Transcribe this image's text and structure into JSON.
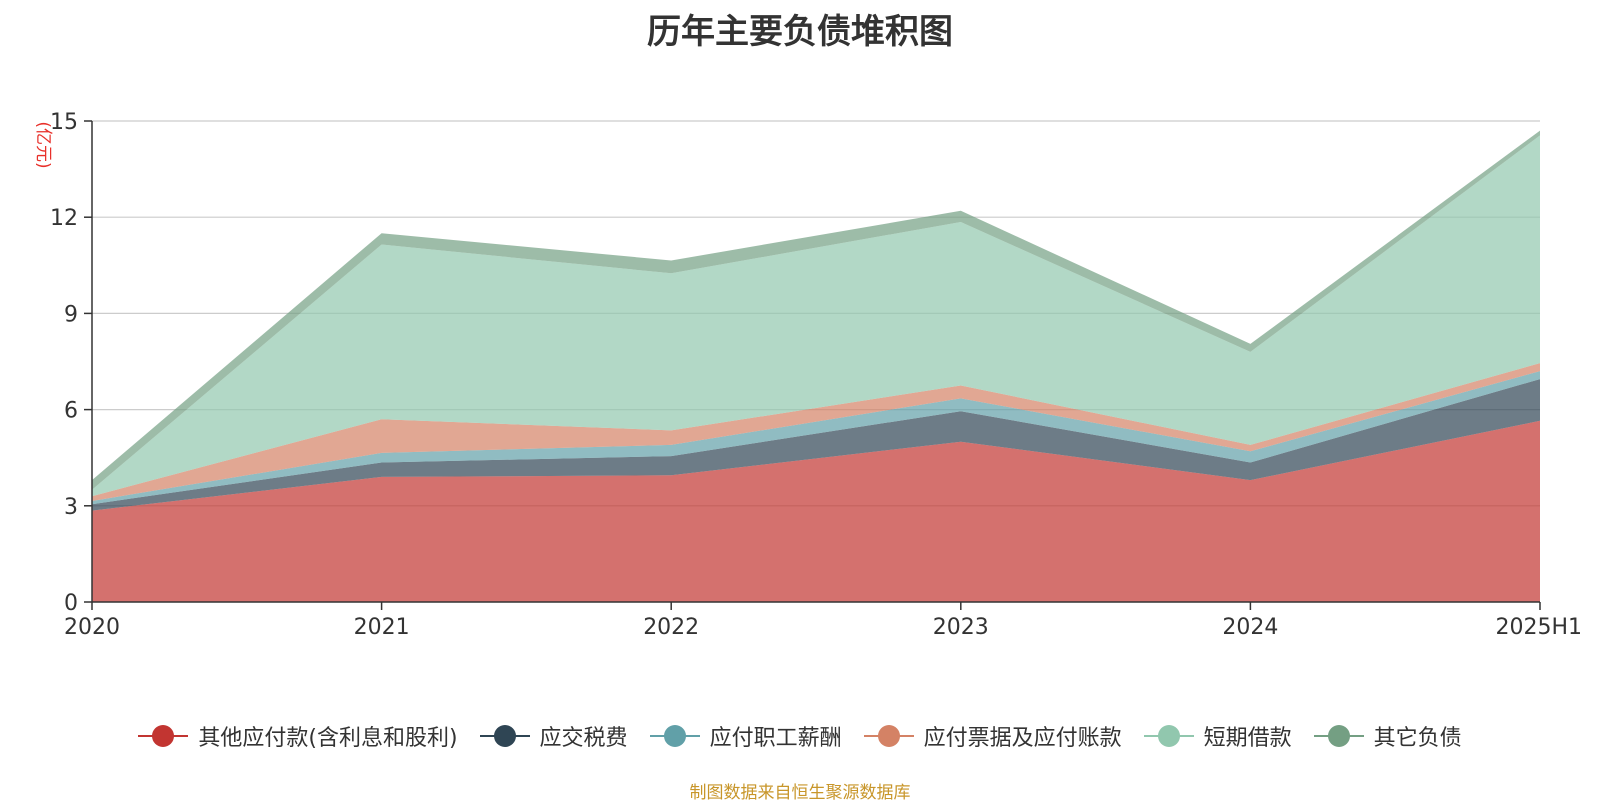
{
  "chart_data": {
    "type": "area",
    "stacked": true,
    "title": "历年主要负债堆积图",
    "ylabel": "(亿元)",
    "xlabel": "",
    "categories": [
      "2020",
      "2021",
      "2022",
      "2023",
      "2024",
      "2025H1"
    ],
    "ylim": [
      0,
      15
    ],
    "yticks": [
      0,
      3,
      6,
      9,
      12,
      15
    ],
    "grid": true,
    "legend_position": "bottom",
    "series": [
      {
        "name": "其他应付款(含利息和股利)",
        "color": "#c23531",
        "values": [
          2.85,
          3.9,
          3.95,
          5.0,
          3.8,
          5.65
        ]
      },
      {
        "name": "应交税费",
        "color": "#2f4554",
        "values": [
          0.2,
          0.45,
          0.6,
          0.95,
          0.55,
          1.3
        ]
      },
      {
        "name": "应付职工薪酬",
        "color": "#61a0a8",
        "values": [
          0.1,
          0.3,
          0.35,
          0.4,
          0.35,
          0.25
        ]
      },
      {
        "name": "应付票据及应付账款",
        "color": "#d48265",
        "values": [
          0.15,
          1.05,
          0.45,
          0.4,
          0.2,
          0.25
        ]
      },
      {
        "name": "短期借款",
        "color": "#91c7ae",
        "values": [
          0.2,
          5.45,
          4.9,
          5.1,
          2.9,
          7.1
        ]
      },
      {
        "name": "其它负债",
        "color": "#749f83",
        "values": [
          0.3,
          0.35,
          0.4,
          0.35,
          0.25,
          0.15
        ]
      }
    ]
  },
  "footer": {
    "source_text": "制图数据来自恒生聚源数据库",
    "source_color": "#c8962a"
  },
  "colors": {
    "axis_label_unit": "#e8302a",
    "axis_line": "#333333",
    "grid_line": "#cccccc",
    "text": "#333333"
  }
}
